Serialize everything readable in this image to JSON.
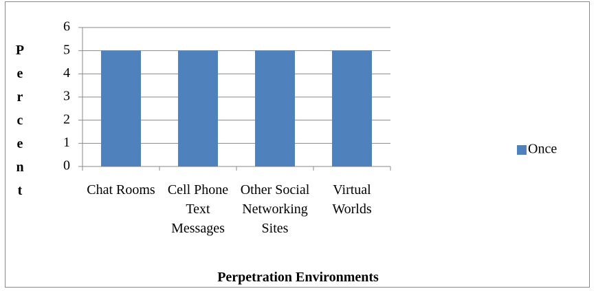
{
  "chart_data": {
    "type": "bar",
    "y_label": "Percent",
    "x_label": "Perpetration Environments",
    "categories": [
      "Chat Rooms",
      "Cell Phone Text Messages",
      "Other Social Networking Sites",
      "Virtual Worlds"
    ],
    "series": [
      {
        "name": "Once",
        "color": "#4f81bd",
        "values": [
          5,
          5,
          5,
          5
        ]
      }
    ],
    "ylim": [
      0,
      6
    ],
    "yticks": [
      0,
      1,
      2,
      3,
      4,
      5,
      6
    ],
    "grid": true,
    "legend": "right"
  }
}
